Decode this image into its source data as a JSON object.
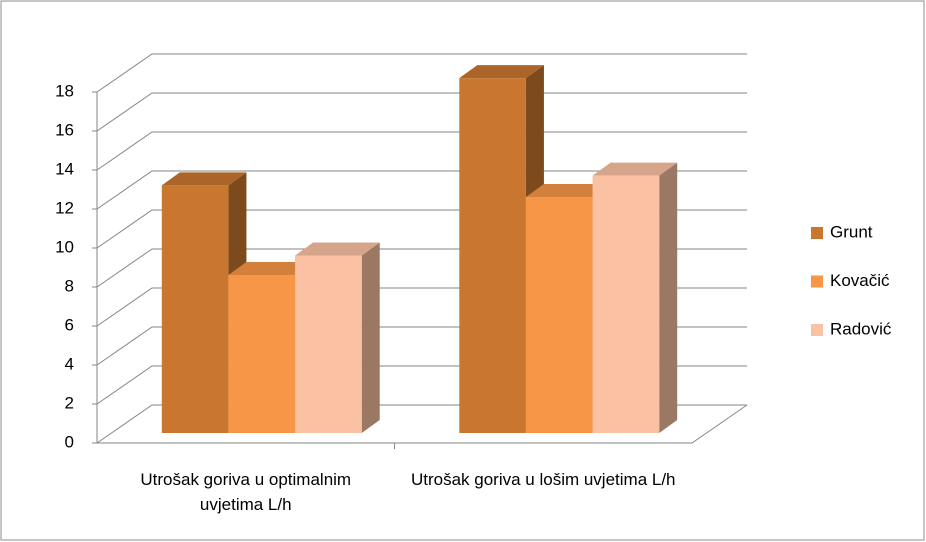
{
  "chart_data": {
    "type": "bar3d",
    "categories": [
      "Utrošak goriva u optimalnim uvjetima L/h",
      "Utrošak goriva u lošim uvjetima L/h"
    ],
    "series": [
      {
        "name": "Grunt",
        "color": "#c9772f",
        "values": [
          12.7,
          18.2
        ]
      },
      {
        "name": "Kovačić",
        "color": "#f79646",
        "values": [
          8.1,
          12.1
        ]
      },
      {
        "name": "Radović",
        "color": "#fac1a2",
        "values": [
          9.1,
          13.2
        ]
      }
    ],
    "ylim": [
      0,
      18
    ],
    "yticks": [
      0,
      2,
      4,
      6,
      8,
      10,
      12,
      14,
      16,
      18
    ],
    "grid": true,
    "legend": "right"
  }
}
